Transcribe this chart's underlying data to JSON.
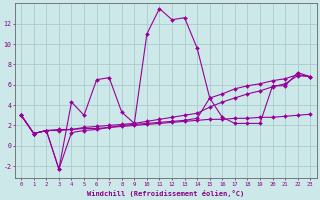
{
  "background_color": "#cce8e8",
  "grid_color": "#aacccc",
  "line_color": "#990099",
  "marker_color": "#990099",
  "xlabel": "Windchill (Refroidissement éolien,°C)",
  "xlabel_color": "#880088",
  "tick_color": "#880088",
  "xlim": [
    -0.5,
    23.5
  ],
  "ylim": [
    -3.2,
    14.0
  ],
  "yticks": [
    -2,
    0,
    2,
    4,
    6,
    8,
    10,
    12
  ],
  "xticks": [
    0,
    1,
    2,
    3,
    4,
    5,
    6,
    7,
    8,
    9,
    10,
    11,
    12,
    13,
    14,
    15,
    16,
    17,
    18,
    19,
    20,
    21,
    22,
    23
  ],
  "series": [
    [
      3.0,
      1.2,
      1.5,
      -2.3,
      4.3,
      3.0,
      6.5,
      6.7,
      3.3,
      2.2,
      11.0,
      13.5,
      12.4,
      12.6,
      9.6,
      4.7,
      2.8,
      2.2,
      2.2,
      2.2,
      5.9,
      5.9,
      7.2,
      6.8
    ],
    [
      3.0,
      1.2,
      1.5,
      1.6,
      1.6,
      1.7,
      1.7,
      1.8,
      1.9,
      2.0,
      2.1,
      2.2,
      2.3,
      2.4,
      2.5,
      2.6,
      2.6,
      2.7,
      2.7,
      2.8,
      2.8,
      2.9,
      3.0,
      3.1
    ],
    [
      3.0,
      1.2,
      1.5,
      1.5,
      1.6,
      1.8,
      1.9,
      2.0,
      2.1,
      2.2,
      2.4,
      2.6,
      2.8,
      3.0,
      3.2,
      3.8,
      4.3,
      4.7,
      5.1,
      5.4,
      5.8,
      6.1,
      6.9,
      6.8
    ],
    [
      3.0,
      1.2,
      1.5,
      -2.3,
      1.3,
      1.5,
      1.6,
      1.8,
      2.0,
      2.1,
      2.2,
      2.3,
      2.4,
      2.5,
      2.7,
      4.7,
      5.1,
      5.6,
      5.9,
      6.1,
      6.4,
      6.6,
      7.0,
      6.8
    ]
  ]
}
